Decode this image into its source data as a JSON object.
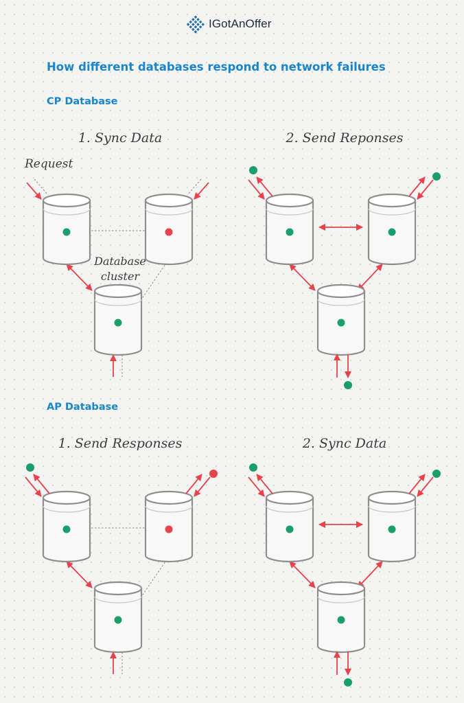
{
  "brand": {
    "name": "IGotAnOffer",
    "icon": "diamond-grid-logo-icon",
    "color": "#1c6fb0"
  },
  "title": "How different databases respond to network failures",
  "sections": [
    {
      "title": "CP Database",
      "panels": [
        {
          "label": "1. Sync Data"
        },
        {
          "label": "2. Send Reponses"
        }
      ]
    },
    {
      "title": "AP Database",
      "panels": [
        {
          "label": "1. Send Responses"
        },
        {
          "label": "2. Sync Data"
        }
      ]
    }
  ],
  "annotations": {
    "request": "Request",
    "cluster_line1": "Database",
    "cluster_line2": "cluster"
  },
  "colors": {
    "accent": "#1a86c9",
    "arrow": "#e8424a",
    "healthy_node": "#1a9e6a",
    "failed_node": "#e8424a",
    "cylinder_stroke": "#8e8e8e",
    "cylinder_fill": "#f8f8f8"
  },
  "panels": [
    {
      "id": "cp-sync-data",
      "nodes": [
        "healthy",
        "failed",
        "healthy"
      ],
      "link_top": "dotted",
      "link_right": "dotted",
      "link_left": "arrow",
      "incoming": [
        "left",
        "right",
        "bottom"
      ],
      "responses": [],
      "failed_client": false
    },
    {
      "id": "cp-send-responses",
      "nodes": [
        "healthy",
        "healthy",
        "healthy"
      ],
      "link_top": "arrow",
      "link_right": "arrow",
      "link_left": "arrow",
      "incoming": [],
      "responses": [
        "left",
        "right",
        "bottom"
      ],
      "failed_client": false
    },
    {
      "id": "ap-send-responses",
      "nodes": [
        "healthy",
        "failed",
        "healthy"
      ],
      "link_top": "dotted",
      "link_right": "dotted",
      "link_left": "arrow",
      "incoming": [
        "bottom"
      ],
      "responses": [
        "left",
        "right"
      ],
      "failed_client": true
    },
    {
      "id": "ap-sync-data",
      "nodes": [
        "healthy",
        "healthy",
        "healthy"
      ],
      "link_top": "arrow",
      "link_right": "arrow",
      "link_left": "arrow",
      "incoming": [],
      "responses": [
        "left",
        "right",
        "bottom"
      ],
      "failed_client": false
    }
  ]
}
